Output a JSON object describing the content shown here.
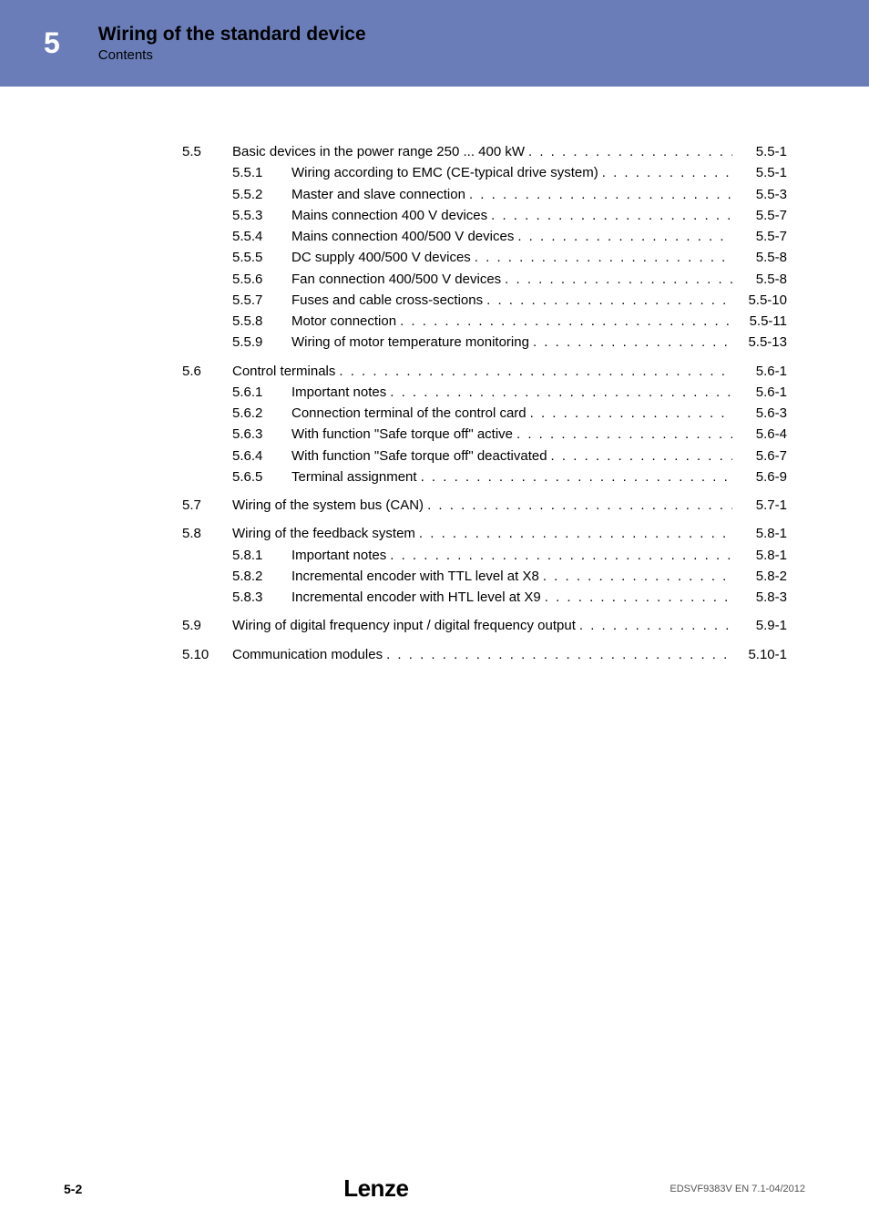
{
  "header": {
    "chapter": "5",
    "title": "Wiring of the standard device",
    "subtitle": "Contents"
  },
  "toc": [
    {
      "type": "section",
      "num": "5.5",
      "text": "Basic devices in the power range 250 ... 400 kW",
      "page": "5.5-1"
    },
    {
      "type": "sub",
      "num": "5.5.1",
      "text": "Wiring according to EMC (CE-typical drive system)",
      "page": "5.5-1"
    },
    {
      "type": "sub",
      "num": "5.5.2",
      "text": "Master and slave connection",
      "page": "5.5-3"
    },
    {
      "type": "sub",
      "num": "5.5.3",
      "text": "Mains connection 400 V devices",
      "page": "5.5-7"
    },
    {
      "type": "sub",
      "num": "5.5.4",
      "text": "Mains connection 400/500 V devices",
      "page": "5.5-7"
    },
    {
      "type": "sub",
      "num": "5.5.5",
      "text": "DC supply 400/500 V devices",
      "page": "5.5-8"
    },
    {
      "type": "sub",
      "num": "5.5.6",
      "text": "Fan connection 400/500 V devices",
      "page": "5.5-8"
    },
    {
      "type": "sub",
      "num": "5.5.7",
      "text": "Fuses and cable cross-sections",
      "page": "5.5-10"
    },
    {
      "type": "sub",
      "num": "5.5.8",
      "text": "Motor connection",
      "page": "5.5-11"
    },
    {
      "type": "sub",
      "num": "5.5.9",
      "text": "Wiring of motor temperature monitoring",
      "page": "5.5-13"
    },
    {
      "type": "section",
      "num": "5.6",
      "text": "Control terminals",
      "page": "5.6-1"
    },
    {
      "type": "sub",
      "num": "5.6.1",
      "text": "Important notes",
      "page": "5.6-1"
    },
    {
      "type": "sub",
      "num": "5.6.2",
      "text": "Connection terminal of the control card",
      "page": "5.6-3"
    },
    {
      "type": "sub",
      "num": "5.6.3",
      "text": "With function \"Safe torque off\" active",
      "page": "5.6-4"
    },
    {
      "type": "sub",
      "num": "5.6.4",
      "text": "With function \"Safe torque off\" deactivated",
      "page": "5.6-7"
    },
    {
      "type": "sub",
      "num": "5.6.5",
      "text": "Terminal assignment",
      "page": "5.6-9"
    },
    {
      "type": "section",
      "num": "5.7",
      "text": "Wiring of the system bus (CAN)",
      "page": "5.7-1"
    },
    {
      "type": "section",
      "num": "5.8",
      "text": "Wiring of the feedback system",
      "page": "5.8-1"
    },
    {
      "type": "sub",
      "num": "5.8.1",
      "text": "Important notes",
      "page": "5.8-1"
    },
    {
      "type": "sub",
      "num": "5.8.2",
      "text": "Incremental encoder with TTL level at X8",
      "page": "5.8-2"
    },
    {
      "type": "sub",
      "num": "5.8.3",
      "text": "Incremental encoder with HTL level at X9",
      "page": "5.8-3"
    },
    {
      "type": "section",
      "num": "5.9",
      "text": "Wiring of digital frequency input / digital frequency output",
      "page": "5.9-1"
    },
    {
      "type": "section",
      "num": "5.10",
      "text": "Communication modules",
      "page": "5.10-1"
    }
  ],
  "footer": {
    "page": "5-2",
    "brand": "Lenze",
    "docid": "EDSVF9383V EN 7.1-04/2012"
  }
}
